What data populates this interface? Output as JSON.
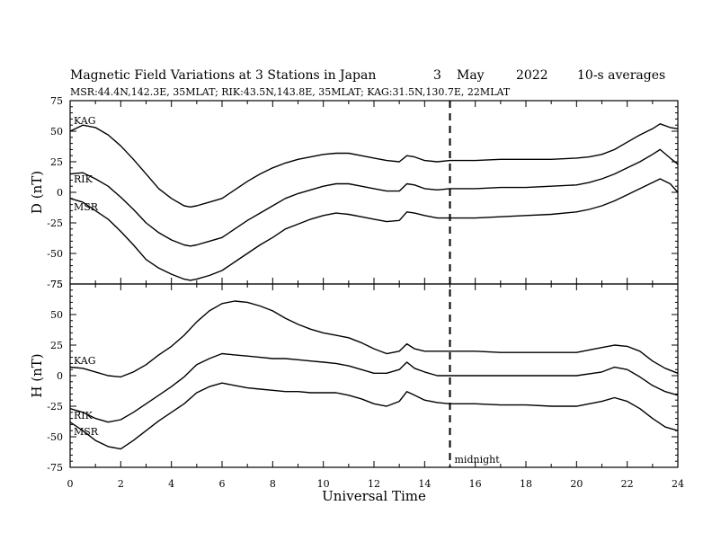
{
  "title": {
    "main": "Magnetic Field Variations at 3 Stations in Japan",
    "day": "3",
    "month": "May",
    "year": "2022",
    "avg": "10-s averages",
    "stations": "MSR:44.4N,142.3E, 35MLAT;  RIK:43.5N,143.8E, 35MLAT;  KAG:31.5N,130.7E, 22MLAT"
  },
  "chart_data": [
    {
      "type": "line",
      "ylabel": "D (nT)",
      "ylim": [
        -75,
        75
      ],
      "yticks": [
        "75",
        "50",
        "25",
        "0",
        "-25",
        "-50",
        "-75"
      ],
      "xlim": [
        0,
        24
      ],
      "series": [
        {
          "name": "KAG",
          "x": [
            0,
            0.5,
            1,
            1.5,
            2,
            2.5,
            3,
            3.5,
            4,
            4.5,
            4.75,
            5,
            5.5,
            6,
            6.5,
            7,
            7.5,
            8,
            8.5,
            9,
            9.5,
            10,
            10.5,
            11,
            11.5,
            12,
            12.5,
            13,
            13.3,
            13.6,
            14,
            14.5,
            15,
            16,
            17,
            18,
            19,
            20,
            20.5,
            21,
            21.5,
            22,
            22.5,
            23,
            23.3,
            23.7,
            24
          ],
          "y": [
            50,
            55,
            53,
            47,
            38,
            27,
            15,
            3,
            -5,
            -11,
            -12,
            -11,
            -8,
            -5,
            2,
            9,
            15,
            20,
            24,
            27,
            29,
            31,
            32,
            32,
            30,
            28,
            26,
            25,
            30,
            29,
            26,
            25,
            26,
            26,
            27,
            27,
            27,
            28,
            29,
            31,
            35,
            41,
            47,
            52,
            56,
            53,
            52
          ]
        },
        {
          "name": "RIK",
          "x": [
            0,
            0.5,
            1,
            1.5,
            2,
            2.5,
            3,
            3.5,
            4,
            4.5,
            4.75,
            5,
            5.5,
            6,
            6.5,
            7,
            7.5,
            8,
            8.5,
            9,
            9.5,
            10,
            10.5,
            11,
            11.5,
            12,
            12.5,
            13,
            13.3,
            13.6,
            14,
            14.5,
            15,
            16,
            17,
            18,
            19,
            20,
            20.5,
            21,
            21.5,
            22,
            22.5,
            23,
            23.3,
            23.7,
            24
          ],
          "y": [
            15,
            16,
            11,
            5,
            -4,
            -14,
            -25,
            -33,
            -39,
            -43,
            -44,
            -43,
            -40,
            -37,
            -30,
            -23,
            -17,
            -11,
            -5,
            -1,
            2,
            5,
            7,
            7,
            5,
            3,
            1,
            1,
            7,
            6,
            3,
            2,
            3,
            3,
            4,
            4,
            5,
            6,
            8,
            11,
            15,
            20,
            25,
            31,
            35,
            28,
            23
          ]
        },
        {
          "name": "MSR",
          "x": [
            0,
            0.5,
            1,
            1.5,
            2,
            2.5,
            3,
            3.5,
            4,
            4.5,
            4.75,
            5,
            5.5,
            6,
            6.5,
            7,
            7.5,
            8,
            8.5,
            9,
            9.5,
            10,
            10.5,
            11,
            11.5,
            12,
            12.5,
            13,
            13.3,
            13.6,
            14,
            14.5,
            15,
            16,
            17,
            18,
            19,
            20,
            20.5,
            21,
            21.5,
            22,
            22.5,
            23,
            23.3,
            23.7,
            24
          ],
          "y": [
            -5,
            -8,
            -15,
            -22,
            -32,
            -43,
            -55,
            -62,
            -67,
            -71,
            -72,
            -71,
            -68,
            -64,
            -57,
            -50,
            -43,
            -37,
            -30,
            -26,
            -22,
            -19,
            -17,
            -18,
            -20,
            -22,
            -24,
            -23,
            -16,
            -17,
            -19,
            -21,
            -21,
            -21,
            -20,
            -19,
            -18,
            -16,
            -14,
            -11,
            -7,
            -2,
            3,
            8,
            11,
            7,
            0
          ]
        }
      ]
    },
    {
      "type": "line",
      "ylabel": "H (nT)",
      "ylim": [
        -75,
        75
      ],
      "yticks": [
        "75",
        "50",
        "25",
        "0",
        "-25",
        "-50",
        "-75"
      ],
      "xlim": [
        0,
        24
      ],
      "xticks": [
        "0",
        "2",
        "4",
        "6",
        "8",
        "10",
        "12",
        "14",
        "16",
        "18",
        "20",
        "22",
        "24"
      ],
      "xlabel": "Universal Time",
      "marker_x": 15,
      "marker_label": "midnight",
      "series": [
        {
          "name": "KAG",
          "x": [
            0,
            0.5,
            1,
            1.5,
            2,
            2.5,
            3,
            3.5,
            4,
            4.5,
            5,
            5.5,
            6,
            6.5,
            7,
            7.5,
            8,
            8.5,
            9,
            9.5,
            10,
            10.5,
            11,
            11.5,
            12,
            12.5,
            13,
            13.3,
            13.6,
            14,
            14.5,
            15,
            16,
            17,
            18,
            19,
            20,
            21,
            21.5,
            22,
            22.5,
            23,
            23.5,
            24
          ],
          "y": [
            7,
            6,
            3,
            0,
            -1,
            3,
            9,
            17,
            24,
            33,
            44,
            53,
            59,
            61,
            60,
            57,
            53,
            47,
            42,
            38,
            35,
            33,
            31,
            27,
            22,
            18,
            20,
            26,
            22,
            20,
            20,
            20,
            20,
            19,
            19,
            19,
            19,
            23,
            25,
            24,
            20,
            12,
            6,
            2
          ]
        },
        {
          "name": "RIK",
          "x": [
            0,
            0.5,
            1,
            1.5,
            2,
            2.5,
            3,
            3.5,
            4,
            4.5,
            5,
            5.5,
            6,
            6.5,
            7,
            7.5,
            8,
            8.5,
            9,
            9.5,
            10,
            10.5,
            11,
            11.5,
            12,
            12.5,
            13,
            13.3,
            13.6,
            14,
            14.5,
            15,
            16,
            17,
            18,
            19,
            20,
            21,
            21.5,
            22,
            22.5,
            23,
            23.5,
            24
          ],
          "y": [
            -27,
            -30,
            -35,
            -38,
            -36,
            -30,
            -23,
            -16,
            -9,
            -1,
            9,
            14,
            18,
            17,
            16,
            15,
            14,
            14,
            13,
            12,
            11,
            10,
            8,
            5,
            2,
            2,
            5,
            11,
            6,
            3,
            0,
            0,
            0,
            0,
            0,
            0,
            0,
            3,
            7,
            5,
            -1,
            -8,
            -13,
            -16
          ]
        },
        {
          "name": "MSR",
          "x": [
            0,
            0.5,
            1,
            1.5,
            2,
            2.5,
            3,
            3.5,
            4,
            4.5,
            5,
            5.5,
            6,
            6.5,
            7,
            7.5,
            8,
            8.5,
            9,
            9.5,
            10,
            10.5,
            11,
            11.5,
            12,
            12.5,
            13,
            13.3,
            13.6,
            14,
            14.5,
            15,
            16,
            17,
            18,
            19,
            20,
            21,
            21.5,
            22,
            22.5,
            23,
            23.5,
            24
          ],
          "y": [
            -38,
            -45,
            -53,
            -58,
            -60,
            -53,
            -45,
            -37,
            -30,
            -23,
            -14,
            -9,
            -6,
            -8,
            -10,
            -11,
            -12,
            -13,
            -13,
            -14,
            -14,
            -14,
            -16,
            -19,
            -23,
            -25,
            -21,
            -13,
            -16,
            -20,
            -22,
            -23,
            -23,
            -24,
            -24,
            -25,
            -25,
            -21,
            -18,
            -21,
            -27,
            -35,
            -42,
            -45
          ]
        }
      ]
    }
  ]
}
